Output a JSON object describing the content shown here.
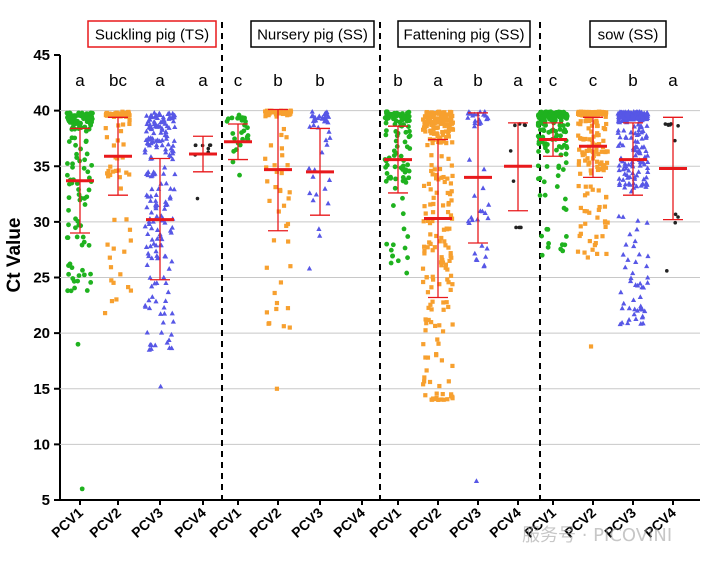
{
  "chart_data": {
    "type": "scatter",
    "title": "",
    "ylabel": "Ct Value",
    "xlabel": "",
    "ylim": [
      5,
      45
    ],
    "yticks": [
      5,
      10,
      15,
      20,
      25,
      30,
      35,
      40,
      45
    ],
    "colors": {
      "PCV1": "#1fb21f",
      "PCV2": "#f7a02f",
      "PCV3": "#5757e6",
      "PCV4": "#222222",
      "summary": "#e8191c",
      "panel_border_highlight": "#e8191c"
    },
    "panels": [
      {
        "label": "Suckling pig (TS)",
        "highlight": true,
        "groups": [
          {
            "category": "PCV1",
            "letter": "a",
            "n": 150,
            "mean": 33.7,
            "sd_low": 29.0,
            "sd_high": 38.4,
            "q1": 29.5,
            "q3": 38.0,
            "min": 23.8,
            "max": 39.8,
            "outliers": [
              19.0,
              6.0
            ]
          },
          {
            "category": "PCV2",
            "letter": "bc",
            "n": 75,
            "mean": 35.9,
            "sd_low": 32.4,
            "sd_high": 39.4,
            "q1": 33.5,
            "q3": 39.3,
            "min": 21.8,
            "max": 39.9,
            "outliers": []
          },
          {
            "category": "PCV3",
            "letter": "a",
            "n": 200,
            "mean": 30.2,
            "sd_low": 24.8,
            "sd_high": 35.7,
            "q1": 26.5,
            "q3": 34.5,
            "min": 18.5,
            "max": 39.8,
            "outliers": [
              15.2
            ]
          },
          {
            "category": "PCV4",
            "letter": "a",
            "n": 8,
            "mean": 36.1,
            "sd_low": 34.5,
            "sd_high": 37.7,
            "q1": 36.0,
            "q3": 36.8,
            "min": 32.1,
            "max": 36.9,
            "outliers": []
          }
        ]
      },
      {
        "label": "Nursery pig (SS)",
        "highlight": false,
        "groups": [
          {
            "category": "PCV1",
            "letter": "c",
            "n": 25,
            "mean": 37.2,
            "sd_low": 35.6,
            "sd_high": 38.8,
            "q1": 36.3,
            "q3": 38.2,
            "min": 34.2,
            "max": 39.6,
            "outliers": []
          },
          {
            "category": "PCV2",
            "letter": "b",
            "n": 80,
            "mean": 34.7,
            "sd_low": 29.2,
            "sd_high": 40.1,
            "q1": 29.5,
            "q3": 39.5,
            "min": 20.5,
            "max": 40.0,
            "outliers": [
              15.0
            ]
          },
          {
            "category": "PCV3",
            "letter": "b",
            "n": 40,
            "mean": 34.5,
            "sd_low": 30.6,
            "sd_high": 38.4,
            "q1": 31.0,
            "q3": 38.5,
            "min": 25.8,
            "max": 39.9,
            "outliers": []
          },
          {
            "category": "PCV4",
            "letter": "",
            "n": 0,
            "mean": null,
            "sd_low": null,
            "sd_high": null,
            "q1": null,
            "q3": null,
            "min": null,
            "max": null,
            "outliers": []
          }
        ]
      },
      {
        "label": "Fattening pig (SS)",
        "highlight": false,
        "groups": [
          {
            "category": "PCV1",
            "letter": "b",
            "n": 110,
            "mean": 35.6,
            "sd_low": 32.6,
            "sd_high": 38.6,
            "q1": 33.5,
            "q3": 38.3,
            "min": 25.4,
            "max": 39.9,
            "outliers": []
          },
          {
            "category": "PCV2",
            "letter": "a",
            "n": 260,
            "mean": 30.3,
            "sd_low": 23.2,
            "sd_high": 37.4,
            "q1": 22.0,
            "q3": 36.5,
            "min": 14.0,
            "max": 39.9,
            "outliers": []
          },
          {
            "category": "PCV3",
            "letter": "b",
            "n": 40,
            "mean": 34.0,
            "sd_low": 28.1,
            "sd_high": 39.8,
            "q1": 30.0,
            "q3": 38.5,
            "min": 26.0,
            "max": 39.9,
            "outliers": [
              6.7
            ]
          },
          {
            "category": "PCV4",
            "letter": "a",
            "n": 7,
            "mean": 35.0,
            "sd_low": 31.0,
            "sd_high": 38.9,
            "q1": 29.5,
            "q3": 38.5,
            "min": 29.5,
            "max": 38.8,
            "outliers": []
          }
        ]
      },
      {
        "label": "sow (SS)",
        "highlight": false,
        "groups": [
          {
            "category": "PCV1",
            "letter": "c",
            "n": 160,
            "mean": 37.4,
            "sd_low": 35.9,
            "sd_high": 38.9,
            "q1": 36.0,
            "q3": 39.0,
            "min": 27.0,
            "max": 39.9,
            "outliers": []
          },
          {
            "category": "PCV2",
            "letter": "c",
            "n": 210,
            "mean": 36.8,
            "sd_low": 34.0,
            "sd_high": 39.4,
            "q1": 34.5,
            "q3": 39.5,
            "min": 26.8,
            "max": 39.9,
            "outliers": [
              18.8
            ]
          },
          {
            "category": "PCV3",
            "letter": "b",
            "n": 300,
            "mean": 35.6,
            "sd_low": 32.4,
            "sd_high": 38.9,
            "q1": 33.0,
            "q3": 38.8,
            "min": 20.8,
            "max": 39.9,
            "outliers": []
          },
          {
            "category": "PCV4",
            "letter": "a",
            "n": 9,
            "mean": 34.8,
            "sd_low": 30.2,
            "sd_high": 39.4,
            "q1": 31.0,
            "q3": 38.5,
            "min": 25.6,
            "max": 38.8,
            "outliers": []
          }
        ]
      }
    ]
  },
  "watermark": {
    "text": "服务号 · PICOVINI"
  }
}
